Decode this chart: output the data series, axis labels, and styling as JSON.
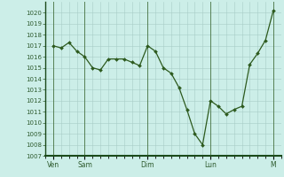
{
  "background_color": "#cceee8",
  "line_color": "#2d5a1e",
  "marker_color": "#2d5a1e",
  "grid_color_minor": "#c8e8e2",
  "grid_color_major": "#a8ccc6",
  "axis_label_color": "#1a3a1a",
  "tick_label_color": "#2d5a2d",
  "ylim": [
    1007,
    1021
  ],
  "yticks": [
    1007,
    1008,
    1009,
    1010,
    1011,
    1012,
    1013,
    1014,
    1015,
    1016,
    1017,
    1018,
    1019,
    1020
  ],
  "x_day_labels": [
    "Ven",
    "Sam",
    "Dim",
    "Lun",
    "M"
  ],
  "x_day_positions": [
    1,
    5,
    13,
    21,
    29
  ],
  "xlim": [
    0,
    30
  ],
  "data_x": [
    1,
    2,
    3,
    4,
    5,
    6,
    7,
    8,
    9,
    10,
    11,
    12,
    13,
    14,
    15,
    16,
    17,
    18,
    19,
    20,
    21,
    22,
    23,
    24,
    25,
    26,
    27,
    28,
    29
  ],
  "data_y": [
    1017.0,
    1016.8,
    1017.3,
    1016.5,
    1016.0,
    1015.0,
    1014.8,
    1015.8,
    1015.8,
    1015.8,
    1015.5,
    1015.2,
    1017.0,
    1016.5,
    1015.0,
    1014.5,
    1013.2,
    1011.2,
    1009.0,
    1008.0,
    1012.0,
    1011.5,
    1010.8,
    1011.2,
    1011.5,
    1015.3,
    1016.3,
    1017.5,
    1020.2
  ]
}
